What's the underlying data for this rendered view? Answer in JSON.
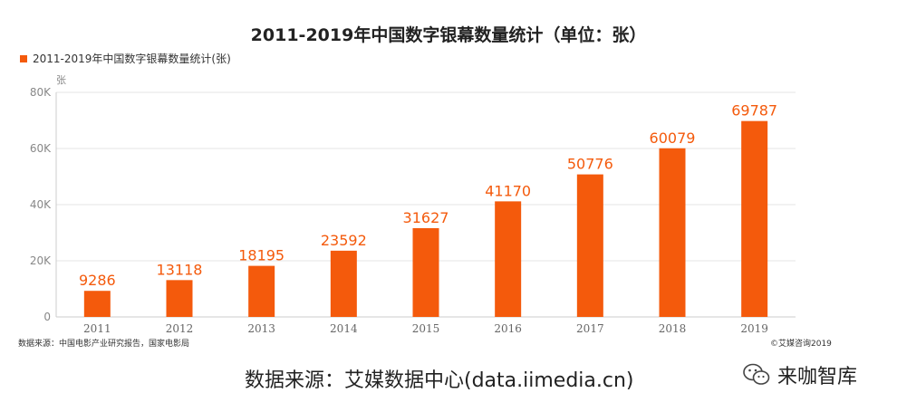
{
  "chart_data": {
    "type": "bar",
    "title": "2011-2019年中国数字银幕数量统计（单位：张）",
    "legend": "2011-2019年中国数字银幕数量统计(张)",
    "unit_label": "张",
    "categories": [
      "2011",
      "2012",
      "2013",
      "2014",
      "2015",
      "2016",
      "2017",
      "2018",
      "2019"
    ],
    "values": [
      9286,
      13118,
      18195,
      23592,
      31627,
      41170,
      50776,
      60079,
      69787
    ],
    "value_labels": [
      "9286",
      "13118",
      "18195",
      "23592",
      "31627",
      "41170",
      "50776",
      "60079",
      "69787"
    ],
    "ylim": [
      0,
      80000
    ],
    "yticks": [
      0,
      20000,
      40000,
      60000,
      80000
    ],
    "ytick_labels": [
      "0",
      "20K",
      "40K",
      "60K",
      "80K"
    ],
    "bar_color": "#f45a0c",
    "label_color": "#f45a0c",
    "grid": true
  },
  "source_note": "数据来源：中国电影产业研究报告，国家电影局",
  "copyright": "©艾媒咨询2019",
  "footer_text": "数据来源：艾媒数据中心(data.iimedia.cn)",
  "wechat": {
    "icon": "wechat-icon",
    "name": "来咖智库"
  }
}
